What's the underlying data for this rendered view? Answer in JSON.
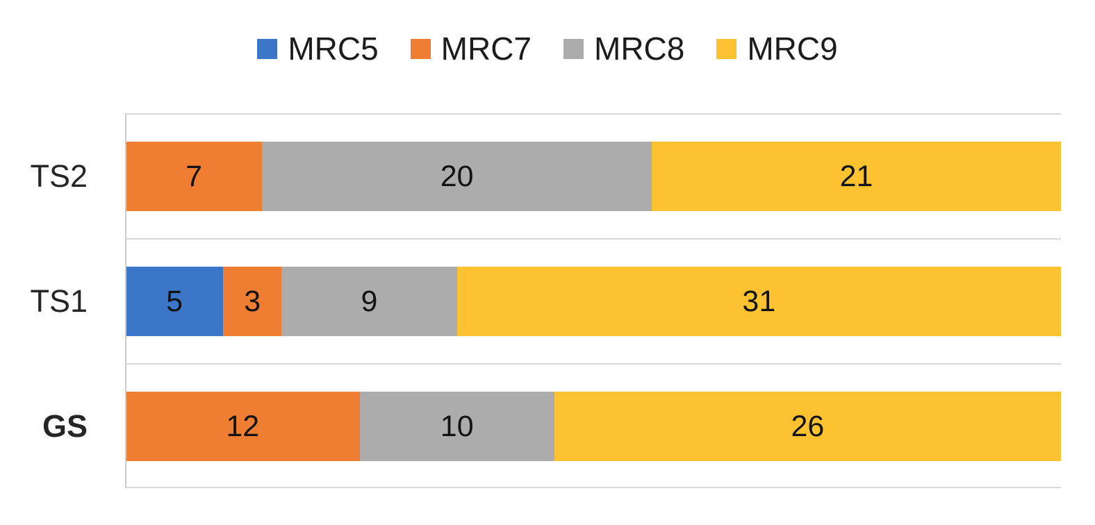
{
  "chart_data": {
    "type": "bar",
    "orientation": "horizontal",
    "stacked": true,
    "title": "",
    "xlabel": "",
    "ylabel": "",
    "x_max": 48,
    "legend_position": "top",
    "grid": "horizontal-category-separators",
    "data_labels": true,
    "categories": [
      {
        "label": "TS2",
        "bold": false
      },
      {
        "label": "TS1",
        "bold": false
      },
      {
        "label": "GS",
        "bold": true
      }
    ],
    "series": [
      {
        "name": "MRC5",
        "color": "#3b76c8",
        "values": [
          0,
          5,
          0
        ]
      },
      {
        "name": "MRC7",
        "color": "#f07e32",
        "values": [
          7,
          3,
          12
        ]
      },
      {
        "name": "MRC8",
        "color": "#acacac",
        "values": [
          20,
          9,
          10
        ]
      },
      {
        "name": "MRC9",
        "color": "#fdc22f",
        "values": [
          21,
          31,
          26
        ]
      }
    ],
    "row_totals": [
      48,
      48,
      48
    ],
    "colors": {
      "gridline": "#d8d8d8",
      "axis_line": "#cccccc",
      "value_label_text": "#131313",
      "category_label_text": "#262626",
      "legend_text": "#1c1c1c",
      "background": "#ffffff"
    }
  }
}
